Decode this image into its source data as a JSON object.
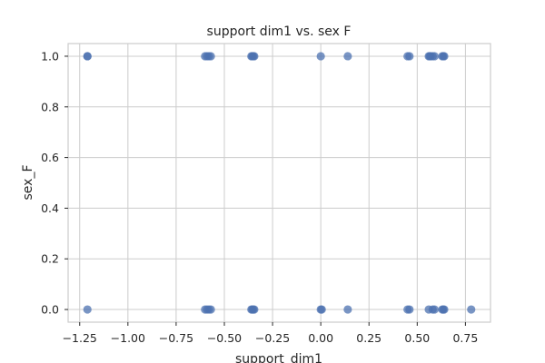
{
  "chart_data": {
    "type": "scatter",
    "title": "support dim1 vs. sex F",
    "xlabel": "support_dim1",
    "ylabel": "sex_F",
    "xlim": [
      -1.31,
      0.88
    ],
    "ylim": [
      -0.05,
      1.05
    ],
    "xticks": [
      -1.25,
      -1.0,
      -0.75,
      -0.5,
      -0.25,
      0.0,
      0.25,
      0.5,
      0.75
    ],
    "xtick_labels": [
      "−1.25",
      "−1.00",
      "−0.75",
      "−0.50",
      "−0.25",
      "0.00",
      "0.25",
      "0.50",
      "0.75"
    ],
    "yticks": [
      0.0,
      0.2,
      0.4,
      0.6,
      0.8,
      1.0
    ],
    "ytick_labels": [
      "0.0",
      "0.2",
      "0.4",
      "0.6",
      "0.8",
      "1.0"
    ],
    "grid": true,
    "marker_color": "#4c72b0",
    "points": [
      {
        "x": -1.21,
        "y": 1
      },
      {
        "x": -1.21,
        "y": 1
      },
      {
        "x": -0.6,
        "y": 1
      },
      {
        "x": -0.59,
        "y": 1
      },
      {
        "x": -0.58,
        "y": 1
      },
      {
        "x": -0.57,
        "y": 1
      },
      {
        "x": -0.36,
        "y": 1
      },
      {
        "x": -0.355,
        "y": 1
      },
      {
        "x": -0.35,
        "y": 1
      },
      {
        "x": -0.345,
        "y": 1
      },
      {
        "x": 0.0,
        "y": 1
      },
      {
        "x": 0.14,
        "y": 1
      },
      {
        "x": 0.45,
        "y": 1
      },
      {
        "x": 0.46,
        "y": 1
      },
      {
        "x": 0.56,
        "y": 1
      },
      {
        "x": 0.565,
        "y": 1
      },
      {
        "x": 0.57,
        "y": 1
      },
      {
        "x": 0.58,
        "y": 1
      },
      {
        "x": 0.59,
        "y": 1
      },
      {
        "x": 0.63,
        "y": 1
      },
      {
        "x": 0.635,
        "y": 1
      },
      {
        "x": 0.64,
        "y": 1
      },
      {
        "x": -1.21,
        "y": 0
      },
      {
        "x": -0.6,
        "y": 0
      },
      {
        "x": -0.59,
        "y": 0
      },
      {
        "x": -0.58,
        "y": 0
      },
      {
        "x": -0.57,
        "y": 0
      },
      {
        "x": -0.36,
        "y": 0
      },
      {
        "x": -0.355,
        "y": 0
      },
      {
        "x": -0.35,
        "y": 0
      },
      {
        "x": -0.345,
        "y": 0
      },
      {
        "x": 0.0,
        "y": 0
      },
      {
        "x": 0.005,
        "y": 0
      },
      {
        "x": 0.14,
        "y": 0
      },
      {
        "x": 0.45,
        "y": 0
      },
      {
        "x": 0.46,
        "y": 0
      },
      {
        "x": 0.56,
        "y": 0
      },
      {
        "x": 0.58,
        "y": 0
      },
      {
        "x": 0.59,
        "y": 0
      },
      {
        "x": 0.63,
        "y": 0
      },
      {
        "x": 0.635,
        "y": 0
      },
      {
        "x": 0.64,
        "y": 0
      },
      {
        "x": 0.78,
        "y": 0
      }
    ]
  }
}
